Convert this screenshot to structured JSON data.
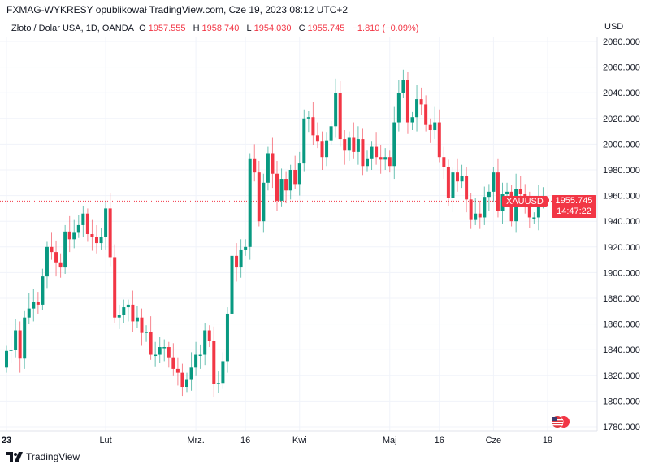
{
  "header": {
    "published": "FXMAG-WYKRESY opublikował TradingView.com, Cze 19, 2023 08:12 UTC+2"
  },
  "legend": {
    "symbol": "Złoto / Dolar USA, 1D, OANDA",
    "o_label": "O",
    "o": "1957.555",
    "h_label": "H",
    "h": "1958.740",
    "l_label": "L",
    "l": "1954.030",
    "c_label": "C",
    "c": "1955.745",
    "change": "−1.810 (−0.09%)"
  },
  "price_axis": {
    "currency": "USD",
    "symbol_tag": "XAUUSD",
    "last_price": "1955.745",
    "countdown": "14:47:22"
  },
  "brand": "TradingView",
  "colors": {
    "up": "#089981",
    "down": "#f23645",
    "grid": "#f0f3fa"
  },
  "chart_data": {
    "type": "candlestick",
    "ylim": [
      1780,
      2080
    ],
    "yticks": [
      "1780.000",
      "1800.000",
      "1820.000",
      "1840.000",
      "1860.000",
      "1880.000",
      "1900.000",
      "1920.000",
      "1940.000",
      "1960.000",
      "1980.000",
      "2000.000",
      "2020.000",
      "2040.000",
      "2060.000",
      "2080.000"
    ],
    "xticks": [
      {
        "label": "23",
        "index": 0
      },
      {
        "label": "Lut",
        "index": 22
      },
      {
        "label": "Mrz.",
        "index": 42
      },
      {
        "label": "16",
        "index": 53
      },
      {
        "label": "Kwi",
        "index": 65
      },
      {
        "label": "Maj",
        "index": 85
      },
      {
        "label": "16",
        "index": 96
      },
      {
        "label": "Cze",
        "index": 108
      },
      {
        "label": "19",
        "index": 120
      }
    ],
    "first_open": 1826,
    "close": [
      1839,
      1840,
      1855,
      1833,
      1865,
      1872,
      1877,
      1875,
      1897,
      1920,
      1916,
      1908,
      1904,
      1932,
      1926,
      1931,
      1937,
      1946,
      1930,
      1928,
      1923,
      1928,
      1950,
      1912,
      1865,
      1867,
      1873,
      1875,
      1862,
      1865,
      1853,
      1854,
      1836,
      1836,
      1842,
      1842,
      1834,
      1825,
      1822,
      1811,
      1817,
      1826,
      1836,
      1836,
      1855,
      1847,
      1813,
      1814,
      1831,
      1868,
      1913,
      1904,
      1918,
      1920,
      1989,
      1978,
      1940,
      1970,
      1993,
      1977,
      1956,
      1973,
      1964,
      1980,
      1969,
      1985,
      2020,
      2021,
      2007,
      2002,
      1990,
      2003,
      2014,
      2040,
      2004,
      1995,
      2005,
      1994,
      2004,
      1983,
      1989,
      1998,
      1990,
      1988,
      1990,
      1983,
      2017,
      2040,
      2050,
      2017,
      2021,
      2035,
      2031,
      2015,
      2011,
      2017,
      1990,
      1982,
      1958,
      1978,
      1971,
      1975,
      1957,
      1941,
      1946,
      1943,
      1959,
      1963,
      1978,
      1948,
      1961,
      1963,
      1940,
      1965,
      1961,
      1957,
      1943,
      1943,
      1957,
      1957.555,
      1955.745
    ],
    "last_candle": {
      "o": 1957.555,
      "h": 1958.74,
      "l": 1954.03,
      "c": 1955.745
    }
  }
}
